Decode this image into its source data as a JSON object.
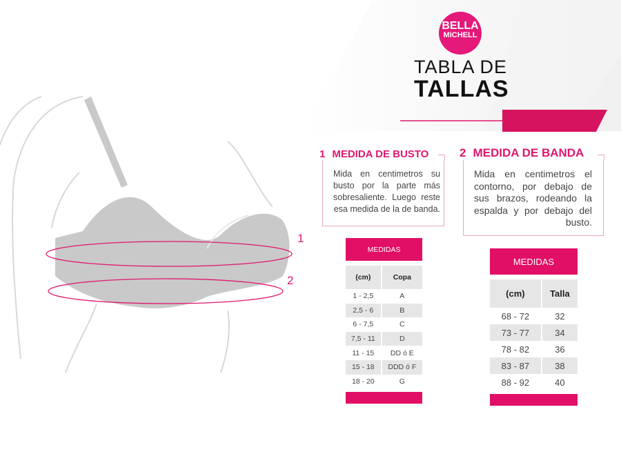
{
  "brand": {
    "logo_line1": "BELLA",
    "logo_line2": "MICHELL",
    "accent": "#e10f66"
  },
  "title": {
    "line1": "TABLA DE",
    "line2": "TALLAS"
  },
  "figure": {
    "marker_1": "1",
    "marker_2": "2"
  },
  "sections": [
    {
      "number": "1",
      "title": "MEDIDA DE BUSTO",
      "text": "Mida en centimetros su busto por la parte más sobresaliente. Luego reste esa medida de la de banda."
    },
    {
      "number": "2",
      "title": "MEDIDA DE BANDA",
      "text": "Mida en centimetros el contorno, por debajo de sus brazos, rodeando la espalda y por debajo del busto."
    }
  ],
  "cup_table": {
    "header": "MEDIDAS",
    "columns": [
      "(cm)",
      "Copa"
    ],
    "rows": [
      [
        "1 - 2,5",
        "A"
      ],
      [
        "2,5 - 6",
        "B"
      ],
      [
        "6 - 7,5",
        "C"
      ],
      [
        "7,5 - 11",
        "D"
      ],
      [
        "11 - 15",
        "DD ó E"
      ],
      [
        "15 - 18",
        "DDD ó F"
      ],
      [
        "18 - 20",
        "G"
      ]
    ]
  },
  "band_table": {
    "header": "MEDIDAS",
    "columns": [
      "(cm)",
      "Talla"
    ],
    "rows": [
      [
        "68 - 72",
        "32"
      ],
      [
        "73 - 77",
        "34"
      ],
      [
        "78 - 82",
        "36"
      ],
      [
        "83 - 87",
        "38"
      ],
      [
        "88 - 92",
        "40"
      ]
    ]
  }
}
